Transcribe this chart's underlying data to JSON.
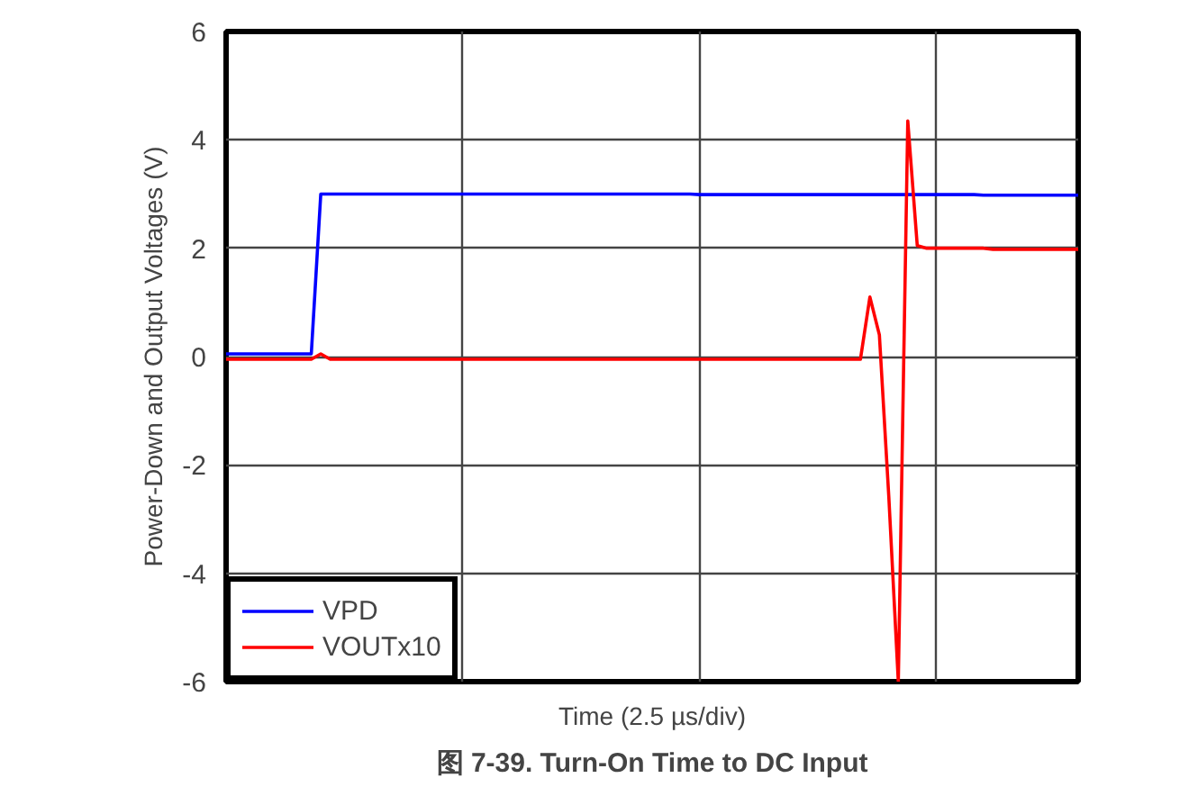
{
  "chart_data": {
    "type": "line",
    "title": "图 7-39. Turn-On Time to DC Input",
    "xlabel": "Time (2.5 µs/div)",
    "ylabel": "Power-Down and Output Voltages (V)",
    "categories": [
      null,
      null,
      null,
      null,
      null,
      null,
      null,
      null,
      null,
      null,
      null,
      null,
      null,
      null,
      null,
      null,
      null,
      null,
      null,
      null,
      null,
      null,
      null,
      null,
      null,
      null,
      null,
      null,
      null,
      null,
      null,
      null,
      null,
      null,
      null,
      null,
      null,
      null,
      null,
      null,
      null,
      null,
      null,
      null,
      null,
      null,
      null,
      null,
      null,
      null,
      null,
      null,
      null,
      null,
      null,
      null,
      null,
      null,
      null,
      null,
      null,
      null,
      null,
      null,
      null,
      null,
      null,
      null,
      null,
      null,
      null,
      null,
      null,
      null,
      null,
      null,
      null,
      null,
      null,
      null,
      null,
      null,
      null,
      null,
      null,
      null,
      null,
      null,
      null,
      null,
      null
    ],
    "ylim": [
      -6,
      6
    ],
    "yticks": [
      -6,
      -4,
      -2,
      0,
      2,
      4,
      6
    ],
    "grid": true,
    "legend": "bottom left",
    "line_style": "solid",
    "series": [
      {
        "name": "VPD",
        "color": "#0000ff",
        "values": [
          0.05,
          0.05,
          0.05,
          0.05,
          0.05,
          0.05,
          0.05,
          0.05,
          0.05,
          0.05,
          3.0,
          3.0,
          3.0,
          3.0,
          3.0,
          3.0,
          3.0,
          3.0,
          3.0,
          3.0,
          3.0,
          3.0,
          3.0,
          3.0,
          3.0,
          3.0,
          3.0,
          3.0,
          3.0,
          3.0,
          3.0,
          3.0,
          3.0,
          3.0,
          3.0,
          3.0,
          3.0,
          3.0,
          3.0,
          3.0,
          3.0,
          3.0,
          3.0,
          3.0,
          3.0,
          3.0,
          3.0,
          3.0,
          3.0,
          3.0,
          2.99,
          2.99,
          2.99,
          2.99,
          2.99,
          2.99,
          2.99,
          2.99,
          2.99,
          2.99,
          2.99,
          2.99,
          2.99,
          2.99,
          2.99,
          2.99,
          2.99,
          2.99,
          2.99,
          2.99,
          2.99,
          2.99,
          2.99,
          2.99,
          2.99,
          2.99,
          2.99,
          2.99,
          2.99,
          2.99,
          2.98,
          2.98,
          2.98,
          2.98,
          2.98,
          2.98,
          2.98,
          2.98,
          2.98,
          2.98,
          2.98
        ]
      },
      {
        "name": "VOUTx10",
        "color": "#ff0000",
        "values": [
          -0.05,
          -0.05,
          -0.05,
          -0.05,
          -0.05,
          -0.05,
          -0.05,
          -0.05,
          -0.05,
          -0.05,
          0.05,
          -0.05,
          -0.05,
          -0.05,
          -0.05,
          -0.05,
          -0.05,
          -0.05,
          -0.05,
          -0.05,
          -0.05,
          -0.05,
          -0.05,
          -0.05,
          -0.05,
          -0.05,
          -0.05,
          -0.05,
          -0.05,
          -0.05,
          -0.05,
          -0.05,
          -0.05,
          -0.05,
          -0.05,
          -0.05,
          -0.05,
          -0.05,
          -0.05,
          -0.05,
          -0.05,
          -0.05,
          -0.05,
          -0.05,
          -0.05,
          -0.05,
          -0.05,
          -0.05,
          -0.05,
          -0.05,
          -0.05,
          -0.05,
          -0.05,
          -0.05,
          -0.05,
          -0.05,
          -0.05,
          -0.05,
          -0.05,
          -0.05,
          -0.05,
          -0.05,
          -0.05,
          -0.05,
          -0.05,
          -0.05,
          -0.05,
          -0.05,
          1.1,
          0.4,
          -2.6,
          -6,
          4.35,
          2.05,
          2.0,
          2.0,
          2.0,
          2.0,
          2.0,
          2.0,
          2.0,
          1.98,
          1.98,
          1.98,
          1.98,
          1.98,
          1.98,
          1.98,
          1.98,
          1.98,
          1.98
        ]
      }
    ]
  }
}
